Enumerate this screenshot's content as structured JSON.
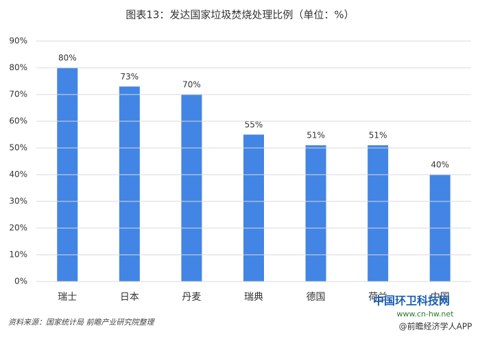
{
  "chart_data": {
    "type": "bar",
    "title": "图表13：发达国家垃圾焚烧处理比例（单位：%）",
    "categories": [
      "瑞士",
      "日本",
      "丹麦",
      "瑞典",
      "德国",
      "荷兰",
      "中国"
    ],
    "values": [
      80,
      73,
      70,
      55,
      51,
      51,
      40
    ],
    "value_labels": [
      "80%",
      "73%",
      "70%",
      "55%",
      "51%",
      "51%",
      "40%"
    ],
    "color": "#4285e4",
    "ylim": [
      0,
      90
    ],
    "yticks": [
      {
        "value": 0,
        "label": "0%"
      },
      {
        "value": 10,
        "label": "10%"
      },
      {
        "value": 20,
        "label": "20%"
      },
      {
        "value": 30,
        "label": "30%"
      },
      {
        "value": 40,
        "label": "40%"
      },
      {
        "value": 50,
        "label": "50%"
      },
      {
        "value": 60,
        "label": "60%"
      },
      {
        "value": 70,
        "label": "70%"
      },
      {
        "value": 80,
        "label": "80%"
      },
      {
        "value": 90,
        "label": "90%"
      }
    ],
    "grid": true,
    "source": "资料来源：国家统计局 前瞻产业研究院整理",
    "watermarks": [
      "中国环卫科技网",
      "www.cn-hw.net",
      "@前瞻经济学人APP"
    ]
  }
}
